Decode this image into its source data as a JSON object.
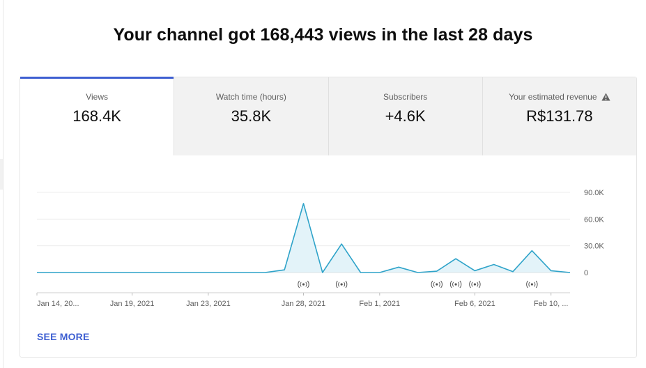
{
  "headline": "Your channel got 168,443 views in the last 28 days",
  "tabs": [
    {
      "label": "Views",
      "value": "168.4K",
      "active": true
    },
    {
      "label": "Watch time (hours)",
      "value": "35.8K",
      "active": false
    },
    {
      "label": "Subscribers",
      "value": "+4.6K",
      "active": false
    },
    {
      "label": "Your estimated revenue",
      "value": "R$131.78",
      "active": false,
      "icon": "warning-icon"
    }
  ],
  "see_more_label": "SEE MORE",
  "colors": {
    "accent": "#3e5fd1",
    "line": "#2ea3c9",
    "fill": "#e3f3f9",
    "grid": "#ececec"
  },
  "chart_data": {
    "type": "area",
    "title": "",
    "xlabel": "",
    "ylabel": "",
    "ylim": [
      0,
      90000
    ],
    "yticks": [
      {
        "value": 90000,
        "label": "90.0K"
      },
      {
        "value": 60000,
        "label": "60.0K"
      },
      {
        "value": 30000,
        "label": "30.0K"
      },
      {
        "value": 0,
        "label": "0"
      }
    ],
    "x": [
      "Jan 14",
      "Jan 15",
      "Jan 16",
      "Jan 17",
      "Jan 18",
      "Jan 19",
      "Jan 20",
      "Jan 21",
      "Jan 22",
      "Jan 23",
      "Jan 24",
      "Jan 25",
      "Jan 26",
      "Jan 27",
      "Jan 28",
      "Jan 29",
      "Jan 30",
      "Jan 31",
      "Feb 1",
      "Feb 2",
      "Feb 3",
      "Feb 4",
      "Feb 5",
      "Feb 6",
      "Feb 7",
      "Feb 8",
      "Feb 9",
      "Feb 10",
      "Feb 11"
    ],
    "values": [
      0,
      0,
      0,
      0,
      0,
      0,
      0,
      0,
      0,
      0,
      0,
      0,
      0,
      3000,
      77500,
      0,
      32000,
      0,
      0,
      6000,
      0,
      1500,
      15500,
      2000,
      9000,
      1000,
      24500,
      2000,
      0
    ],
    "xtick_labels": [
      {
        "index": 0,
        "label": "Jan 14, 20..."
      },
      {
        "index": 5,
        "label": "Jan 19, 2021"
      },
      {
        "index": 9,
        "label": "Jan 23, 2021"
      },
      {
        "index": 14,
        "label": "Jan 28, 2021"
      },
      {
        "index": 18,
        "label": "Feb 1, 2021"
      },
      {
        "index": 23,
        "label": "Feb 6, 2021"
      },
      {
        "index": 27,
        "label": "Feb 10, ..."
      }
    ],
    "markers": [
      14,
      16,
      21,
      22,
      23,
      26
    ],
    "grid": true,
    "legend": "none"
  }
}
